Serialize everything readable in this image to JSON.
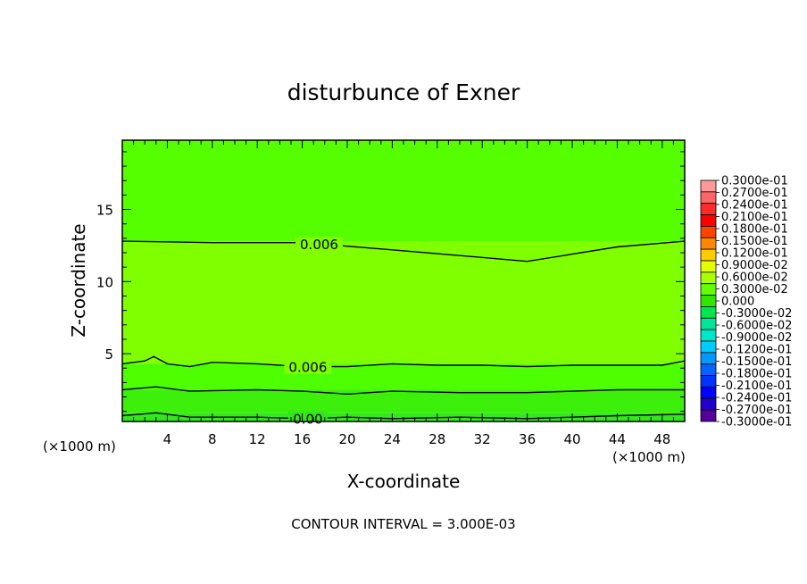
{
  "chart_data": {
    "type": "heatmap",
    "title": "disturbunce of Exner",
    "xlabel": "X-coordinate",
    "ylabel": "Z-coordinate",
    "x_unit_left": "(×1000 m)",
    "x_unit_right": "(×1000 m)",
    "xlim": [
      0,
      50
    ],
    "ylim": [
      0.3,
      19.8
    ],
    "x_ticks": [
      4,
      8,
      12,
      16,
      20,
      24,
      28,
      32,
      36,
      40,
      44,
      48
    ],
    "y_ticks": [
      5,
      10,
      15
    ],
    "footer": "CONTOUR INTERVAL = 3.000E-03",
    "contours": [
      {
        "label": "0.006",
        "points": [
          [
            0,
            12.8
          ],
          [
            8,
            12.7
          ],
          [
            16,
            12.7
          ],
          [
            24,
            12.2
          ],
          [
            30,
            11.8
          ],
          [
            36,
            11.4
          ],
          [
            40,
            11.9
          ],
          [
            44,
            12.4
          ],
          [
            50,
            12.8
          ]
        ]
      },
      {
        "label": "0.006",
        "points": [
          [
            0,
            4.3
          ],
          [
            2,
            4.5
          ],
          [
            2.8,
            4.8
          ],
          [
            4,
            4.3
          ],
          [
            6,
            4.1
          ],
          [
            8,
            4.4
          ],
          [
            12,
            4.3
          ],
          [
            16,
            4.1
          ],
          [
            20,
            4.1
          ],
          [
            24,
            4.3
          ],
          [
            28,
            4.2
          ],
          [
            32,
            4.2
          ],
          [
            36,
            4.1
          ],
          [
            40,
            4.2
          ],
          [
            44,
            4.2
          ],
          [
            48,
            4.2
          ],
          [
            50,
            4.5
          ]
        ]
      },
      {
        "label": "",
        "points": [
          [
            0,
            2.5
          ],
          [
            3,
            2.7
          ],
          [
            6,
            2.4
          ],
          [
            12,
            2.5
          ],
          [
            16,
            2.4
          ],
          [
            20,
            2.2
          ],
          [
            24,
            2.4
          ],
          [
            30,
            2.3
          ],
          [
            36,
            2.3
          ],
          [
            40,
            2.4
          ],
          [
            44,
            2.5
          ],
          [
            50,
            2.5
          ]
        ]
      },
      {
        "label": "0.00",
        "points": [
          [
            0,
            0.7
          ],
          [
            3,
            0.9
          ],
          [
            6,
            0.6
          ],
          [
            12,
            0.6
          ],
          [
            16,
            0.5
          ],
          [
            20,
            0.6
          ],
          [
            24,
            0.5
          ],
          [
            30,
            0.6
          ],
          [
            36,
            0.5
          ],
          [
            40,
            0.6
          ],
          [
            44,
            0.7
          ],
          [
            50,
            0.8
          ]
        ]
      }
    ],
    "fill_bands": [
      {
        "z_from": 0.3,
        "z_to": 0.9,
        "color": "#33e81a"
      },
      {
        "z_from": 0.9,
        "z_to": 2.5,
        "color": "#3df00c"
      },
      {
        "z_from": 2.5,
        "z_to": 4.3,
        "color": "#4dff00"
      },
      {
        "z_from": 4.3,
        "z_to": 12.8,
        "color": "#80ff00"
      },
      {
        "z_from": 12.8,
        "z_to": 19.8,
        "color": "#55ff00"
      }
    ],
    "colorbar": {
      "labels": [
        "0.3000e-01",
        "0.2700e-01",
        "0.2400e-01",
        "0.2100e-01",
        "0.1800e-01",
        "0.1500e-01",
        "0.1200e-01",
        "0.9000e-02",
        "0.6000e-02",
        "0.3000e-02",
        "0.000",
        "-0.3000e-02",
        "-0.6000e-02",
        "-0.9000e-02",
        "-0.1200e-01",
        "-0.1500e-01",
        "-0.1800e-01",
        "-0.2100e-01",
        "-0.2400e-01",
        "-0.2700e-01",
        "-0.3000e-01"
      ],
      "colors": [
        "#ff9999",
        "#ff6666",
        "#ff2a2a",
        "#ff0000",
        "#ff4400",
        "#ff8800",
        "#ffcc00",
        "#e6ff00",
        "#aaff00",
        "#66ff00",
        "#33e600",
        "#00e64d",
        "#00e699",
        "#00e6cc",
        "#00ccff",
        "#0099ff",
        "#0066ff",
        "#0033ff",
        "#0000ff",
        "#2200cc",
        "#550099"
      ]
    }
  }
}
